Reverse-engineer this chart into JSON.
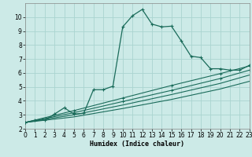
{
  "xlabel": "Humidex (Indice chaleur)",
  "background_color": "#cceae7",
  "grid_color": "#aad4d0",
  "line_color": "#1a6b5a",
  "xlim": [
    0,
    23
  ],
  "ylim": [
    2,
    11
  ],
  "yticks": [
    2,
    3,
    4,
    5,
    6,
    7,
    8,
    9,
    10
  ],
  "xticks": [
    0,
    1,
    2,
    3,
    4,
    5,
    6,
    7,
    8,
    9,
    10,
    11,
    12,
    13,
    14,
    15,
    16,
    17,
    18,
    19,
    20,
    21,
    22,
    23
  ],
  "line1_x": [
    0,
    1,
    2,
    3,
    4,
    5,
    6,
    7,
    8,
    9,
    10,
    11,
    12,
    13,
    14,
    15,
    16,
    17,
    18,
    19,
    20,
    21,
    22,
    23
  ],
  "line1_y": [
    2.45,
    2.6,
    2.6,
    3.05,
    3.5,
    3.05,
    3.1,
    4.8,
    4.8,
    5.05,
    9.3,
    10.1,
    10.55,
    9.5,
    9.3,
    9.35,
    8.3,
    7.2,
    7.1,
    6.3,
    6.3,
    6.2,
    6.2,
    6.55
  ],
  "line2_x": [
    0,
    5,
    10,
    15,
    20,
    23
  ],
  "line2_y": [
    2.45,
    3.3,
    4.2,
    5.1,
    5.95,
    6.5
  ],
  "line3_x": [
    0,
    5,
    10,
    15,
    20,
    23
  ],
  "line3_y": [
    2.45,
    3.15,
    3.95,
    4.75,
    5.6,
    6.2
  ],
  "line4_x": [
    0,
    5,
    10,
    15,
    20,
    23
  ],
  "line4_y": [
    2.45,
    3.0,
    3.7,
    4.45,
    5.25,
    5.85
  ],
  "line5_x": [
    0,
    5,
    10,
    15,
    20,
    23
  ],
  "line5_y": [
    2.45,
    2.85,
    3.45,
    4.1,
    4.85,
    5.4
  ]
}
